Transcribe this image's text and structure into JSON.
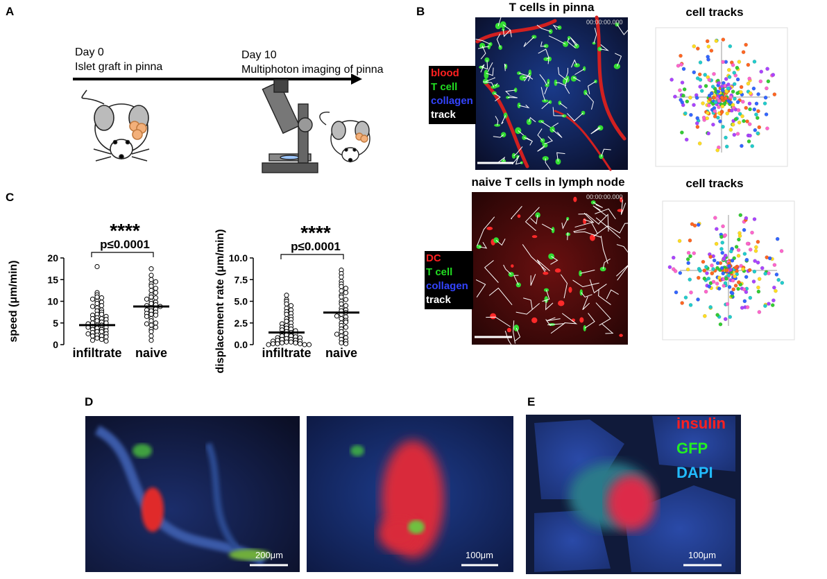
{
  "panel_labels": [
    "A",
    "B",
    "C",
    "D",
    "E"
  ],
  "panel_a": {
    "day0": "Day 0",
    "day0_text": "Islet graft in pinna",
    "day10": "Day 10",
    "day10_text": "Multiphoton imaging of pinna"
  },
  "panel_b": {
    "top": {
      "title": "T cells in pinna",
      "timestamp": "00:00:00.000",
      "legend": [
        "blood",
        "T cell",
        "collagen",
        "track"
      ],
      "tracks_title": "cell tracks"
    },
    "bottom": {
      "title": "naive T cells in lymph node",
      "timestamp": "00:00:00.000",
      "legend": [
        "DC",
        "T cell",
        "collagen",
        "track"
      ],
      "tracks_title": "cell tracks"
    }
  },
  "chart_data": [
    {
      "type": "strip",
      "ylabel": "speed (μm/min)",
      "annotation": "****",
      "p_value": "p≤0.0001",
      "categories": [
        "infiltrate",
        "naive"
      ],
      "values": [
        [
          18,
          12,
          11.5,
          11,
          10.8,
          10.5,
          10,
          9.8,
          9.5,
          9,
          8.8,
          8.5,
          8,
          7.8,
          7.5,
          7,
          7,
          6.8,
          6.5,
          6.2,
          6,
          6,
          5.8,
          5.5,
          5.2,
          5,
          5,
          4.8,
          4.5,
          4.5,
          4.2,
          4,
          4,
          3.8,
          3.5,
          3.5,
          3.2,
          3,
          3,
          2.8,
          2.5,
          2.5,
          2.2,
          2,
          2,
          1.8,
          1.5,
          1.2,
          1,
          0.8
        ],
        [
          17.5,
          16,
          15,
          14.5,
          14,
          13.5,
          13,
          12.5,
          12,
          11.5,
          11,
          10.8,
          10.5,
          10,
          9.8,
          9.5,
          9.2,
          9,
          8.8,
          8.5,
          8.2,
          8,
          7.8,
          7.5,
          7.2,
          7,
          6.8,
          6.5,
          6,
          5.5,
          5,
          4.8,
          4.5,
          4,
          3.5,
          3,
          2,
          1
        ]
      ],
      "means": [
        4.5,
        8.8
      ],
      "ylim": [
        0,
        20
      ],
      "yticks": [
        0,
        5,
        10,
        15,
        20
      ]
    },
    {
      "type": "strip",
      "ylabel": "displacement rate (μm/min)",
      "annotation": "****",
      "p_value": "p≤0.0001",
      "categories": [
        "infiltrate",
        "naive"
      ],
      "values": [
        [
          5.7,
          5.2,
          5,
          4.7,
          4.5,
          4.2,
          4,
          3.8,
          3.6,
          3.5,
          3.2,
          3,
          2.9,
          2.7,
          2.5,
          2.4,
          2.2,
          2.1,
          2,
          1.9,
          1.8,
          1.7,
          1.6,
          1.5,
          1.4,
          1.3,
          1.2,
          1.1,
          1,
          1,
          0.9,
          0.8,
          0.8,
          0.7,
          0.6,
          0.6,
          0.5,
          0.5,
          0.4,
          0.4,
          0.3,
          0.3,
          0.2,
          0.2,
          0.1,
          0.1,
          0.1,
          0,
          0,
          0
        ],
        [
          8.6,
          8.2,
          7.8,
          7.3,
          7,
          6.7,
          6.5,
          6.2,
          6,
          5.7,
          5.5,
          5.2,
          5,
          4.7,
          4.5,
          4.2,
          4,
          3.9,
          3.7,
          3.5,
          3.2,
          3,
          2.8,
          2.5,
          2.2,
          2,
          1.8,
          1.5,
          1.3,
          1,
          0.8,
          0.6,
          0.4,
          0.2,
          0.1,
          3.3,
          2.6,
          1.2
        ]
      ],
      "means": [
        1.4,
        3.7
      ],
      "ylim": [
        0,
        10
      ],
      "yticks": [
        {
          "value": 0,
          "label": "0.0"
        },
        2.5,
        {
          "value": 5,
          "label": "5.0"
        },
        7.5,
        {
          "value": 10,
          "label": "10.0"
        }
      ]
    }
  ],
  "panel_d": {
    "scale_bars": [
      "200μm",
      "100μm"
    ]
  },
  "panel_e": {
    "legend": [
      "insulin",
      "GFP",
      "DAPI"
    ],
    "scale_bar": "100μm"
  }
}
